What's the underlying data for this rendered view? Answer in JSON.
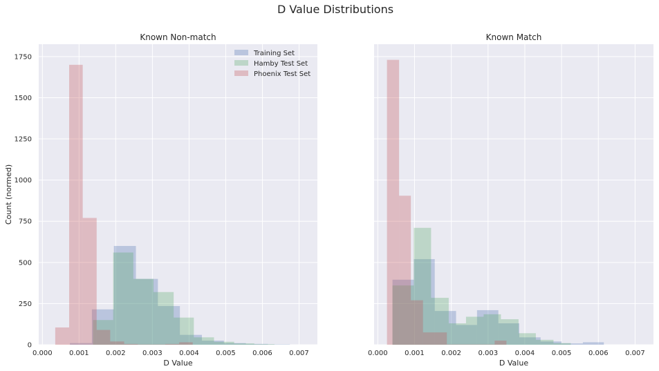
{
  "figure": {
    "title": "D Value Distributions",
    "ylabel": "Count (normed)",
    "xlabel": "D Value"
  },
  "chart_data": [
    {
      "type": "bar",
      "subtype": "histogram-overlay",
      "title": "Known Non-match",
      "xlabel": "D Value",
      "ylabel": "Count (normed)",
      "xlim": [
        -0.0001,
        0.0075
      ],
      "ylim": [
        0,
        1825
      ],
      "xticks": [
        0.0,
        0.001,
        0.002,
        0.003,
        0.004,
        0.005,
        0.006,
        0.007
      ],
      "xtick_labels": [
        "0.000",
        "0.001",
        "0.002",
        "0.003",
        "0.004",
        "0.005",
        "0.006",
        "0.007"
      ],
      "yticks": [
        0,
        250,
        500,
        750,
        1000,
        1250,
        1500,
        1750
      ],
      "ytick_labels": [
        "0",
        "250",
        "500",
        "750",
        "1000",
        "1250",
        "1500",
        "1750"
      ],
      "grid": true,
      "legend": "top-right",
      "series": [
        {
          "name": "Training Set",
          "color": "#4c72b0",
          "bin_edges": [
            0.00075,
            0.00135,
            0.00195,
            0.00255,
            0.00315,
            0.00375,
            0.00435,
            0.00495,
            0.00555,
            0.00615,
            0.00675
          ],
          "counts": [
            10,
            215,
            600,
            400,
            235,
            60,
            25,
            10,
            5,
            2
          ]
        },
        {
          "name": "Hamby Test Set",
          "color": "#55a868",
          "bin_edges": [
            0.00138,
            0.00193,
            0.00248,
            0.00303,
            0.00358,
            0.00413,
            0.00468,
            0.00523,
            0.00578,
            0.00633
          ],
          "counts": [
            150,
            560,
            400,
            320,
            165,
            45,
            18,
            8,
            3
          ]
        },
        {
          "name": "Phoenix Test Set",
          "color": "#c44e52",
          "bin_edges": [
            0.00035,
            0.00073,
            0.0011,
            0.00148,
            0.00185,
            0.00223,
            0.0026,
            0.00298,
            0.00335,
            0.00373,
            0.0041
          ],
          "counts": [
            105,
            1700,
            770,
            90,
            20,
            5,
            2,
            2,
            5,
            15
          ]
        }
      ]
    },
    {
      "type": "bar",
      "subtype": "histogram-overlay",
      "title": "Known Match",
      "xlabel": "D Value",
      "xlim": [
        -0.0001,
        0.0075
      ],
      "ylim": [
        0,
        1825
      ],
      "xticks": [
        0.0,
        0.001,
        0.002,
        0.003,
        0.004,
        0.005,
        0.006,
        0.007
      ],
      "xtick_labels": [
        "0.000",
        "0.001",
        "0.002",
        "0.003",
        "0.004",
        "0.005",
        "0.006",
        "0.007"
      ],
      "grid": true,
      "series": [
        {
          "name": "Training Set",
          "color": "#4c72b0",
          "bin_edges": [
            0.0004,
            0.00098,
            0.00155,
            0.00213,
            0.0027,
            0.00328,
            0.00385,
            0.00443,
            0.005,
            0.00558,
            0.00615
          ],
          "counts": [
            395,
            520,
            205,
            120,
            210,
            130,
            45,
            20,
            8,
            15
          ]
        },
        {
          "name": "Hamby Test Set",
          "color": "#55a868",
          "bin_edges": [
            0.0004,
            0.00098,
            0.00145,
            0.00193,
            0.0024,
            0.00288,
            0.00335,
            0.00383,
            0.0043,
            0.00478,
            0.00525
          ],
          "counts": [
            360,
            710,
            285,
            130,
            170,
            185,
            155,
            70,
            30,
            10
          ]
        },
        {
          "name": "Phoenix Test Set",
          "color": "#c44e52",
          "bin_edges": [
            0.00025,
            0.00058,
            0.0009,
            0.00123,
            0.00155,
            0.00188,
            0.0022,
            0.00253,
            0.00285,
            0.00318,
            0.0035
          ],
          "counts": [
            1730,
            905,
            270,
            75,
            75,
            2,
            2,
            2,
            2,
            25
          ]
        }
      ]
    }
  ]
}
